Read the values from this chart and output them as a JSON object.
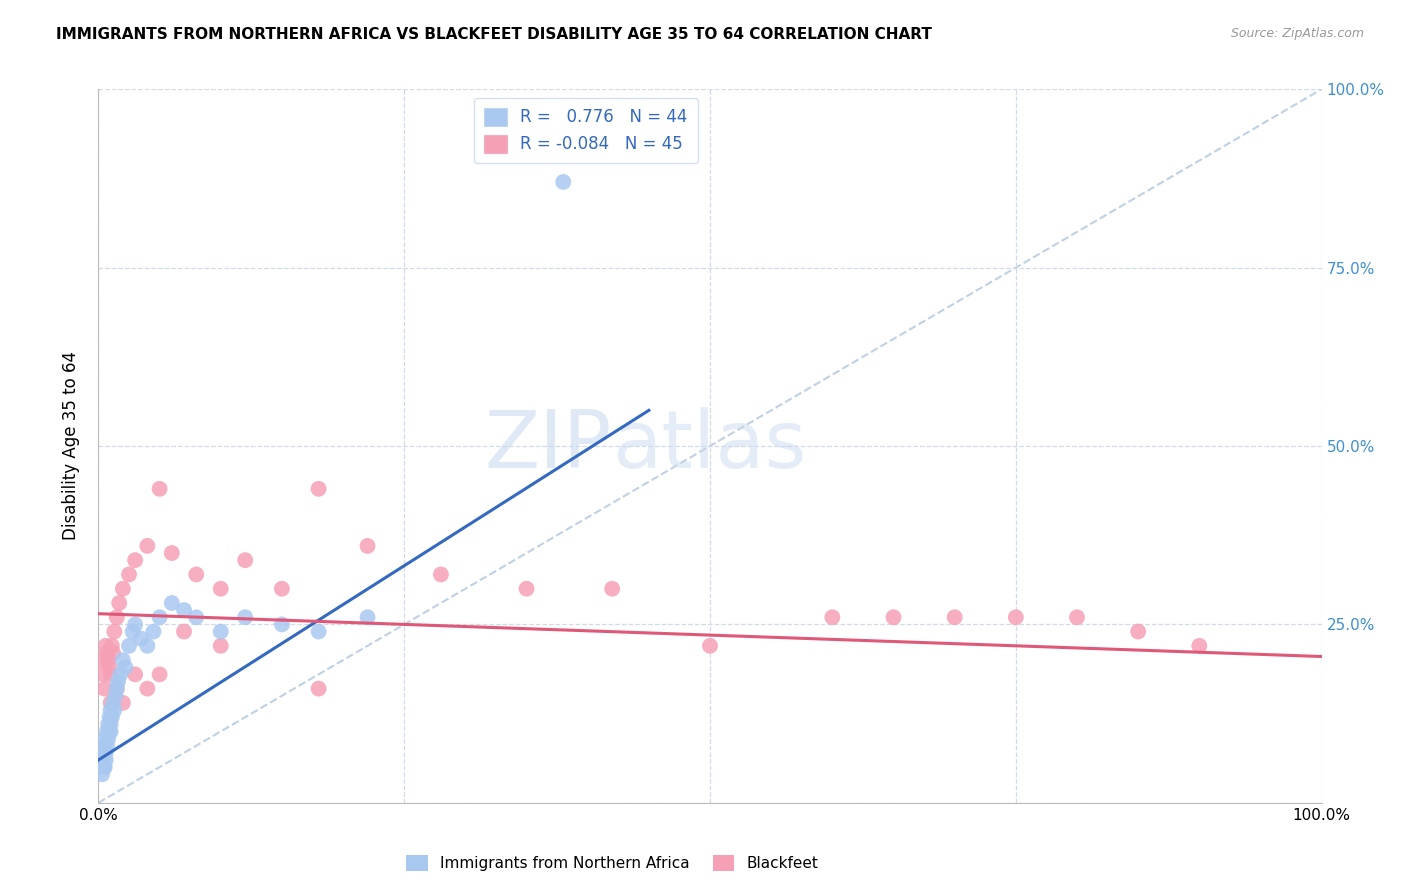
{
  "title": "IMMIGRANTS FROM NORTHERN AFRICA VS BLACKFEET DISABILITY AGE 35 TO 64 CORRELATION CHART",
  "source": "Source: ZipAtlas.com",
  "ylabel": "Disability Age 35 to 64",
  "xlim": [
    0.0,
    1.0
  ],
  "ylim": [
    0.0,
    1.0
  ],
  "blue_R": 0.776,
  "blue_N": 44,
  "pink_R": -0.084,
  "pink_N": 45,
  "blue_color": "#a8c8f0",
  "pink_color": "#f5a0b5",
  "blue_line_color": "#3469c0",
  "pink_line_color": "#e05878",
  "diag_color": "#b8cce0",
  "right_yaxis_color": "#4090d0",
  "legend_box_color": "#ffffff",
  "legend_border_color": "#c8d8f0",
  "grid_color": "#d0dae8",
  "blue_scatter_x": [
    0.003,
    0.004,
    0.004,
    0.005,
    0.005,
    0.005,
    0.006,
    0.006,
    0.007,
    0.007,
    0.008,
    0.008,
    0.009,
    0.009,
    0.01,
    0.01,
    0.011,
    0.012,
    0.013,
    0.014,
    0.015,
    0.016,
    0.018,
    0.02,
    0.022,
    0.025,
    0.028,
    0.03,
    0.035,
    0.04,
    0.045,
    0.05,
    0.06,
    0.07,
    0.08,
    0.1,
    0.12,
    0.15,
    0.18,
    0.22,
    0.005,
    0.006,
    0.01,
    0.38
  ],
  "blue_scatter_y": [
    0.04,
    0.06,
    0.05,
    0.05,
    0.08,
    0.07,
    0.06,
    0.09,
    0.08,
    0.1,
    0.09,
    0.11,
    0.1,
    0.12,
    0.13,
    0.11,
    0.12,
    0.14,
    0.13,
    0.15,
    0.16,
    0.17,
    0.18,
    0.2,
    0.19,
    0.22,
    0.24,
    0.25,
    0.23,
    0.22,
    0.24,
    0.26,
    0.28,
    0.27,
    0.26,
    0.24,
    0.26,
    0.25,
    0.24,
    0.26,
    0.05,
    0.07,
    0.1,
    0.87
  ],
  "pink_scatter_x": [
    0.003,
    0.004,
    0.005,
    0.006,
    0.007,
    0.008,
    0.009,
    0.01,
    0.011,
    0.012,
    0.013,
    0.015,
    0.017,
    0.02,
    0.025,
    0.03,
    0.04,
    0.05,
    0.06,
    0.08,
    0.1,
    0.12,
    0.15,
    0.18,
    0.22,
    0.28,
    0.35,
    0.42,
    0.5,
    0.6,
    0.65,
    0.7,
    0.75,
    0.8,
    0.85,
    0.9,
    0.01,
    0.015,
    0.02,
    0.03,
    0.04,
    0.05,
    0.07,
    0.1,
    0.18
  ],
  "pink_scatter_y": [
    0.2,
    0.18,
    0.16,
    0.22,
    0.21,
    0.2,
    0.19,
    0.18,
    0.22,
    0.21,
    0.24,
    0.26,
    0.28,
    0.3,
    0.32,
    0.34,
    0.36,
    0.44,
    0.35,
    0.32,
    0.3,
    0.34,
    0.3,
    0.44,
    0.36,
    0.32,
    0.3,
    0.3,
    0.22,
    0.26,
    0.26,
    0.26,
    0.26,
    0.26,
    0.24,
    0.22,
    0.14,
    0.16,
    0.14,
    0.18,
    0.16,
    0.18,
    0.24,
    0.22,
    0.16
  ],
  "blue_line_x0": 0.0,
  "blue_line_y0": 0.06,
  "blue_line_x1": 0.45,
  "blue_line_y1": 0.55,
  "pink_line_x0": 0.0,
  "pink_line_y0": 0.265,
  "pink_line_x1": 1.0,
  "pink_line_y1": 0.205
}
